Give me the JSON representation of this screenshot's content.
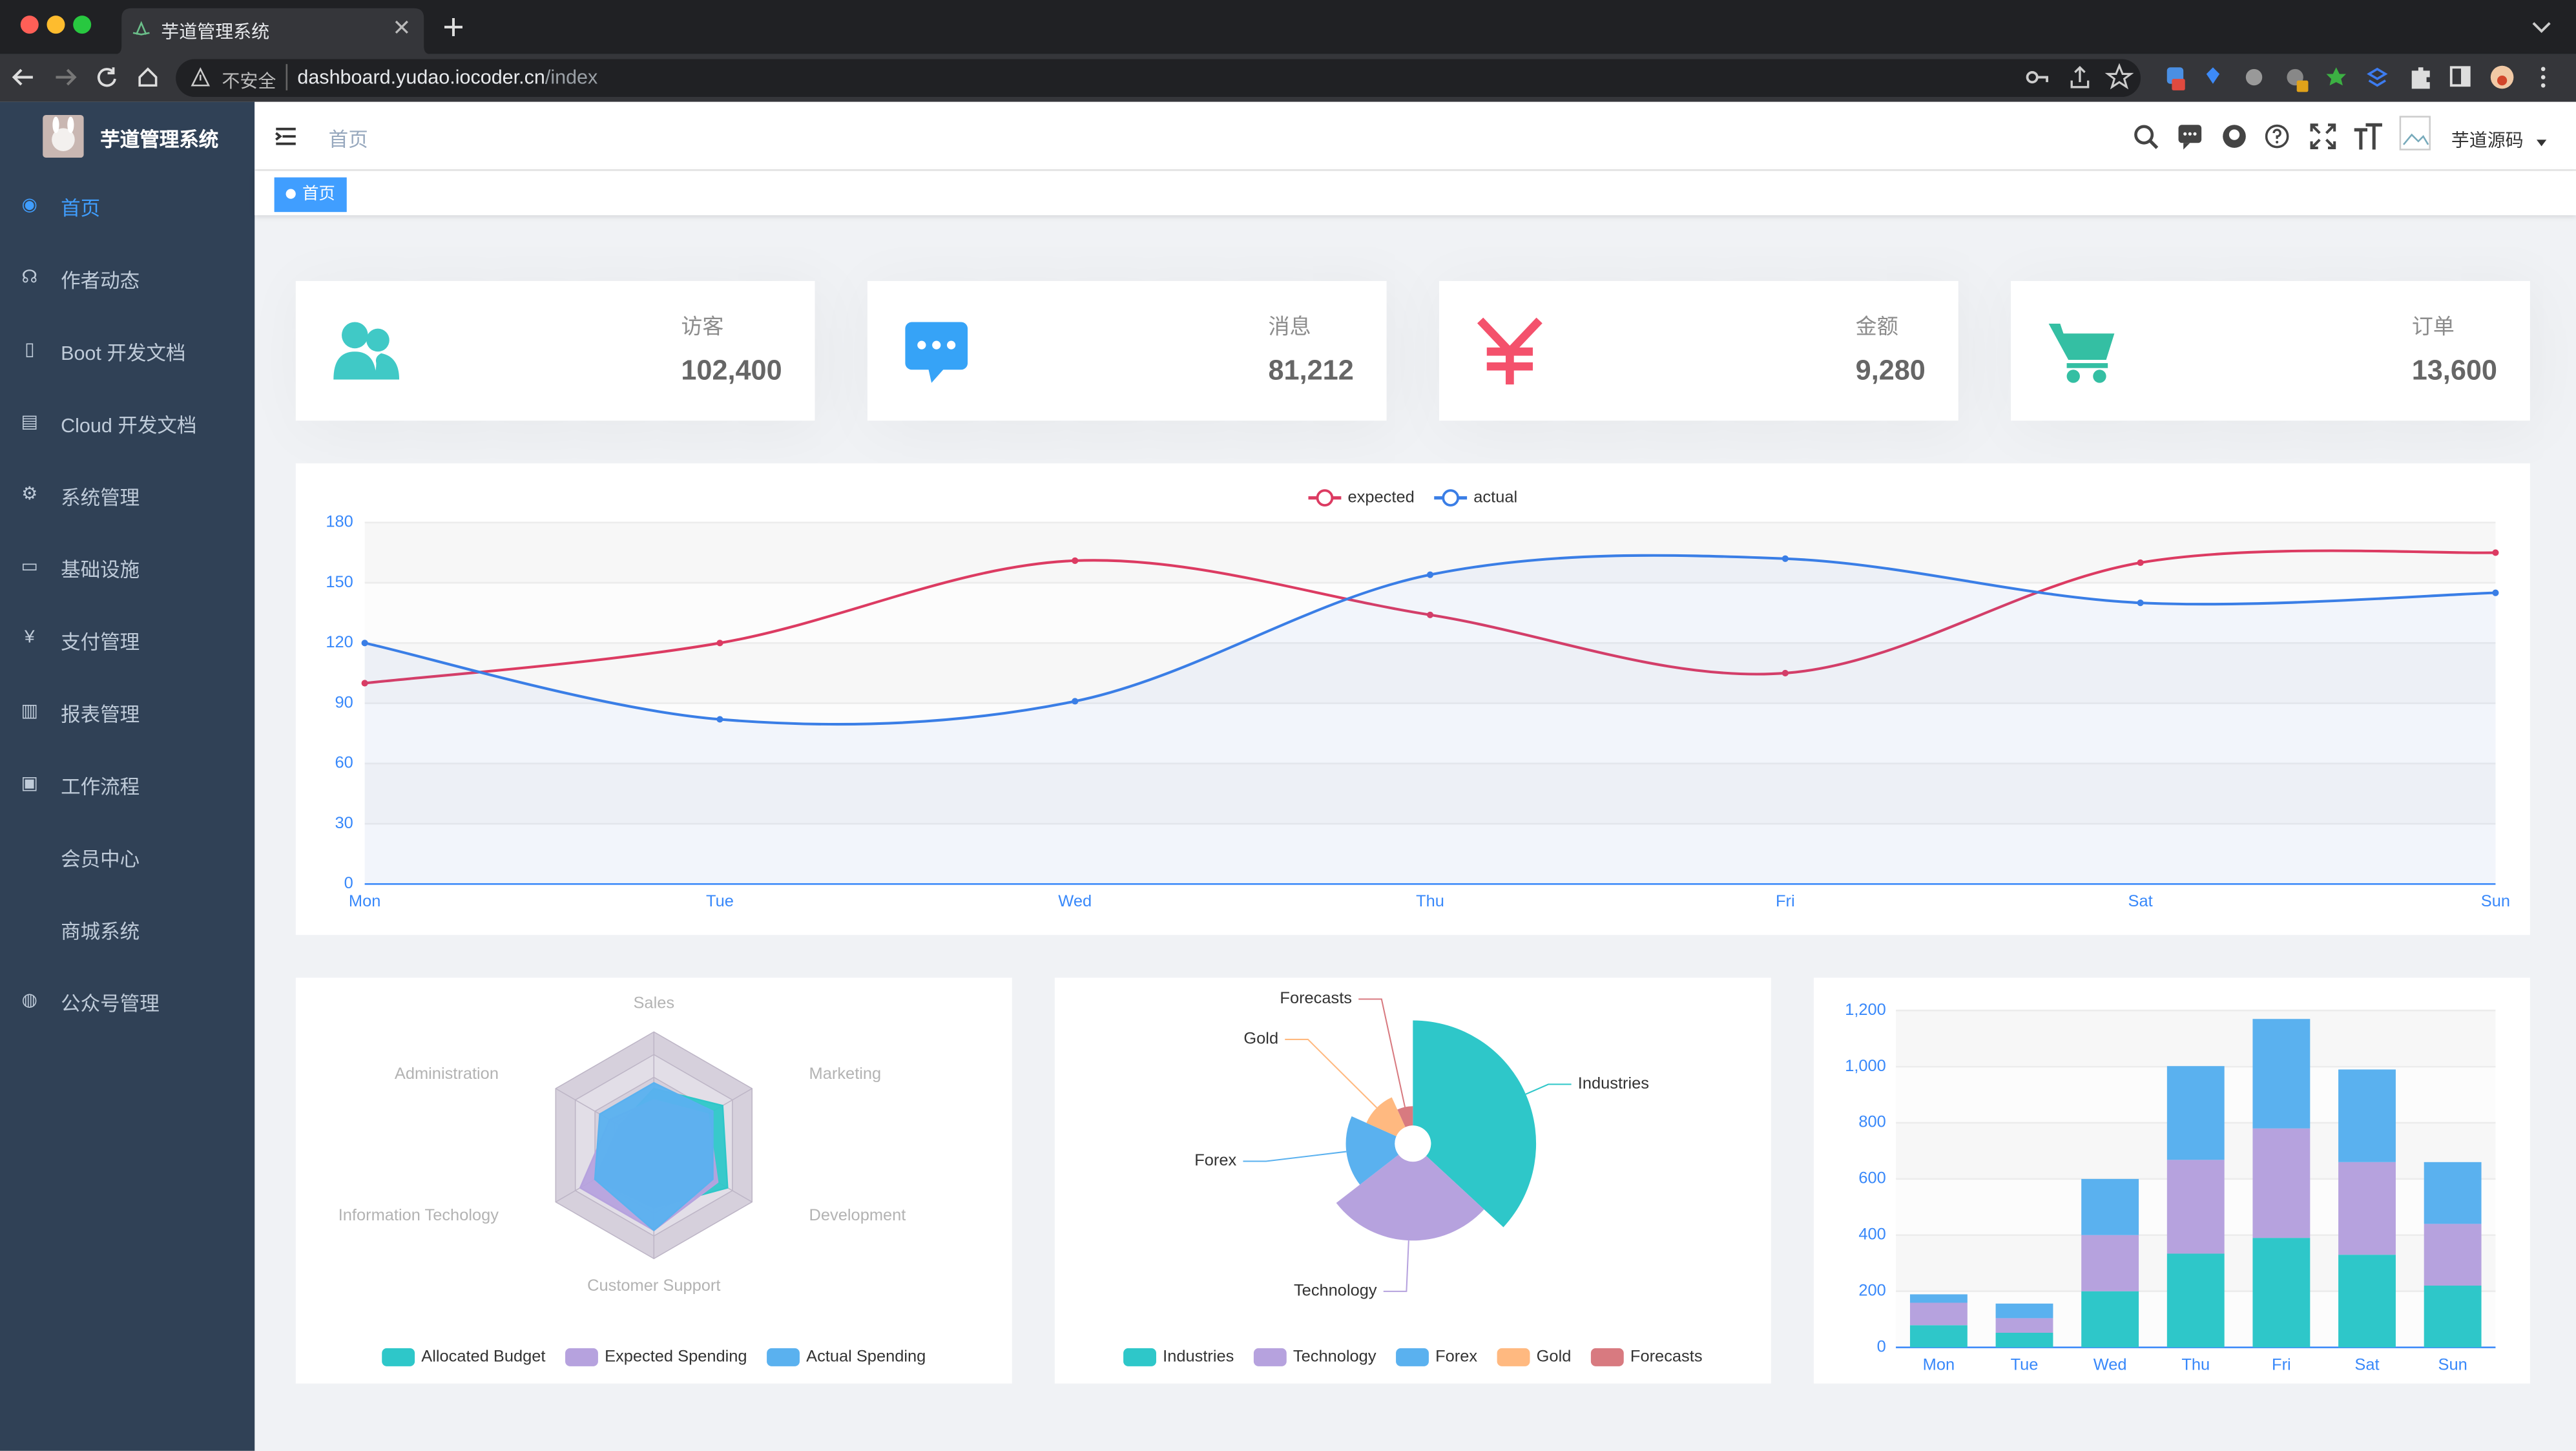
{
  "browser": {
    "tab_title": "芋道管理系统",
    "security": "不安全",
    "url_host": "dashboard.yudao.iocoder.cn",
    "url_path": "/index"
  },
  "sidebar": {
    "title": "芋道管理系统",
    "active": 0,
    "menu": [
      {
        "label": "首页",
        "has_children": false
      },
      {
        "label": "作者动态",
        "has_children": false
      },
      {
        "label": "Boot 开发文档",
        "has_children": false
      },
      {
        "label": "Cloud 开发文档",
        "has_children": false
      },
      {
        "label": "系统管理",
        "has_children": true
      },
      {
        "label": "基础设施",
        "has_children": true
      },
      {
        "label": "支付管理",
        "has_children": true
      },
      {
        "label": "报表管理",
        "has_children": true
      },
      {
        "label": "工作流程",
        "has_children": true
      },
      {
        "label": "会员中心",
        "has_children": true
      },
      {
        "label": "商城系统",
        "has_children": true
      },
      {
        "label": "公众号管理",
        "has_children": true
      }
    ]
  },
  "header": {
    "breadcrumb": "首页",
    "user": "芋道源码"
  },
  "tags": [
    "首页"
  ],
  "stats": [
    {
      "label": "访客",
      "value": "102,400",
      "color": "#40c9c6"
    },
    {
      "label": "消息",
      "value": "81,212",
      "color": "#36a3f7"
    },
    {
      "label": "金额",
      "value": "9,280",
      "color": "#f4516c"
    },
    {
      "label": "订单",
      "value": "13,600",
      "color": "#34bfa3"
    }
  ],
  "line_chart": {
    "type": "line",
    "categories": [
      "Mon",
      "Tue",
      "Wed",
      "Thu",
      "Fri",
      "Sat",
      "Sun"
    ],
    "series": [
      {
        "name": "expected",
        "color": "#dc3b62",
        "values": [
          100,
          120,
          161,
          134,
          105,
          160,
          165
        ]
      },
      {
        "name": "actual",
        "color": "#3a7ee6",
        "area": true,
        "values": [
          120,
          82,
          91,
          154,
          162,
          140,
          145
        ]
      }
    ],
    "ylim": [
      0,
      180
    ],
    "yticks": [
      0,
      30,
      60,
      90,
      120,
      150,
      180
    ],
    "grid": true
  },
  "radar_chart": {
    "type": "radar",
    "indicators": [
      {
        "name": "Sales",
        "max": 10000
      },
      {
        "name": "Administration",
        "max": 20000
      },
      {
        "name": "Information Techology",
        "max": 20000
      },
      {
        "name": "Customer Support",
        "max": 20000
      },
      {
        "name": "Development",
        "max": 20000
      },
      {
        "name": "Marketing",
        "max": 20000
      }
    ],
    "series": [
      {
        "name": "Allocated Budget",
        "color": "#2ec7c9",
        "values": [
          5000,
          7000,
          12000,
          11000,
          15000,
          14000
        ]
      },
      {
        "name": "Expected Spending",
        "color": "#b6a2de",
        "values": [
          4000,
          9000,
          15000,
          15000,
          13000,
          11000
        ]
      },
      {
        "name": "Actual Spending",
        "color": "#5ab1ef",
        "values": [
          5500,
          11000,
          12000,
          15000,
          12000,
          12000
        ]
      }
    ]
  },
  "pie_chart": {
    "type": "pie",
    "rose": true,
    "categories": [
      "Industries",
      "Technology",
      "Forex",
      "Gold",
      "Forecasts"
    ],
    "values": [
      320,
      240,
      149,
      100,
      59
    ],
    "colors": [
      "#2ec7c9",
      "#b6a2de",
      "#5ab1ef",
      "#ffb980",
      "#d87a80"
    ]
  },
  "bar_chart": {
    "type": "bar",
    "stacked": true,
    "categories": [
      "Mon",
      "Tue",
      "Wed",
      "Thu",
      "Fri",
      "Sat",
      "Sun"
    ],
    "series": [
      {
        "color": "#2ec7c9",
        "values": [
          79,
          52,
          200,
          334,
          390,
          330,
          220
        ]
      },
      {
        "color": "#b6a2de",
        "values": [
          80,
          52,
          200,
          334,
          390,
          330,
          220
        ]
      },
      {
        "color": "#5ab1ef",
        "values": [
          30,
          52,
          200,
          334,
          390,
          330,
          220
        ]
      }
    ],
    "ylim": [
      0,
      1200
    ],
    "yticks": [
      0,
      200,
      400,
      600,
      800,
      {
        "value": 1000,
        "label": "1,000"
      },
      {
        "value": 1200,
        "label": "1,200"
      }
    ],
    "grid": true
  }
}
